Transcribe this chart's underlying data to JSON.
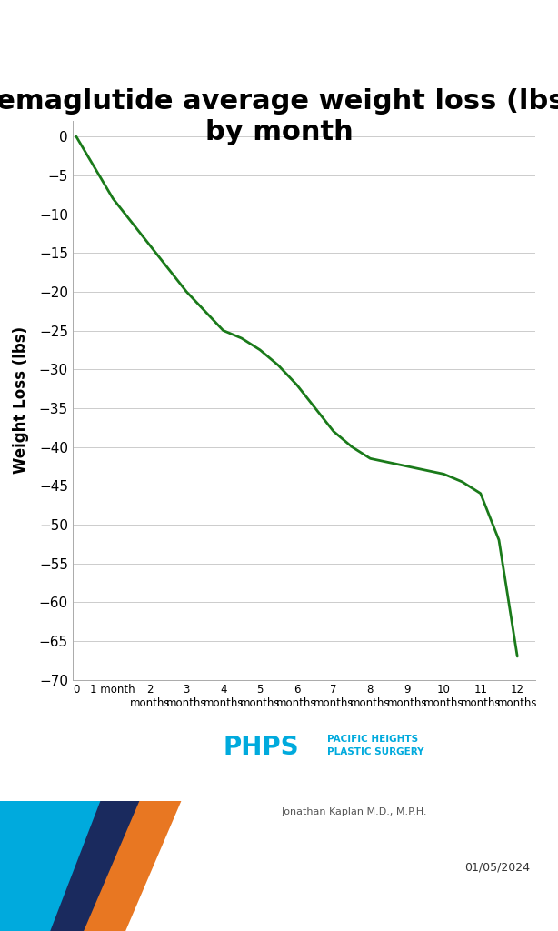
{
  "title": "semaglutide average weight loss (lbs)\nby month",
  "xlabel_ticks": [
    "0",
    "1 month",
    "2\nmonths",
    "3\nmonths",
    "4\nmonths",
    "5\nmonths",
    "6\nmonths",
    "7\nmonths",
    "8\nmonths",
    "9\nmonths",
    "10\nmonths",
    "11\nmonths",
    "12\nmonths"
  ],
  "ylabel": "Weight Loss (lbs)",
  "x_raw": [
    0,
    0.5,
    1,
    1.5,
    2,
    2.5,
    3,
    3.5,
    4,
    4.5,
    5,
    5.5,
    6,
    6.5,
    7,
    7.5,
    8,
    8.5,
    9,
    9.5,
    10,
    10.5,
    11,
    11.5,
    12
  ],
  "y_raw": [
    0,
    -4,
    -8,
    -11,
    -14,
    -17,
    -20,
    -22.5,
    -25,
    -26,
    -27.5,
    -29.5,
    -32,
    -35,
    -38,
    -40,
    -41.5,
    -42,
    -42.5,
    -43,
    -43.5,
    -44.5,
    -46,
    -52,
    -67
  ],
  "line_color": "#1a7a1a",
  "ylim": [
    -70,
    2
  ],
  "xlim": [
    -0.1,
    12.5
  ],
  "yticks": [
    0,
    -5,
    -10,
    -15,
    -20,
    -25,
    -30,
    -35,
    -40,
    -45,
    -50,
    -55,
    -60,
    -65,
    -70
  ],
  "title_fontsize": 22,
  "axis_fontsize": 11,
  "ylabel_fontsize": 12,
  "date_text": "01/05/2024",
  "phps_text": "PHPS",
  "phps_subtitle": "PACIFIC HEIGHTS\nPLASTIC SURGERY",
  "doctor_text": "Jonathan Kaplan M.D., M.P.H.",
  "background_color": "#ffffff",
  "grid_color": "#cccccc",
  "footer_colors": {
    "dark_blue": "#1a2a5e",
    "light_blue": "#00aadd",
    "orange": "#e87722"
  }
}
